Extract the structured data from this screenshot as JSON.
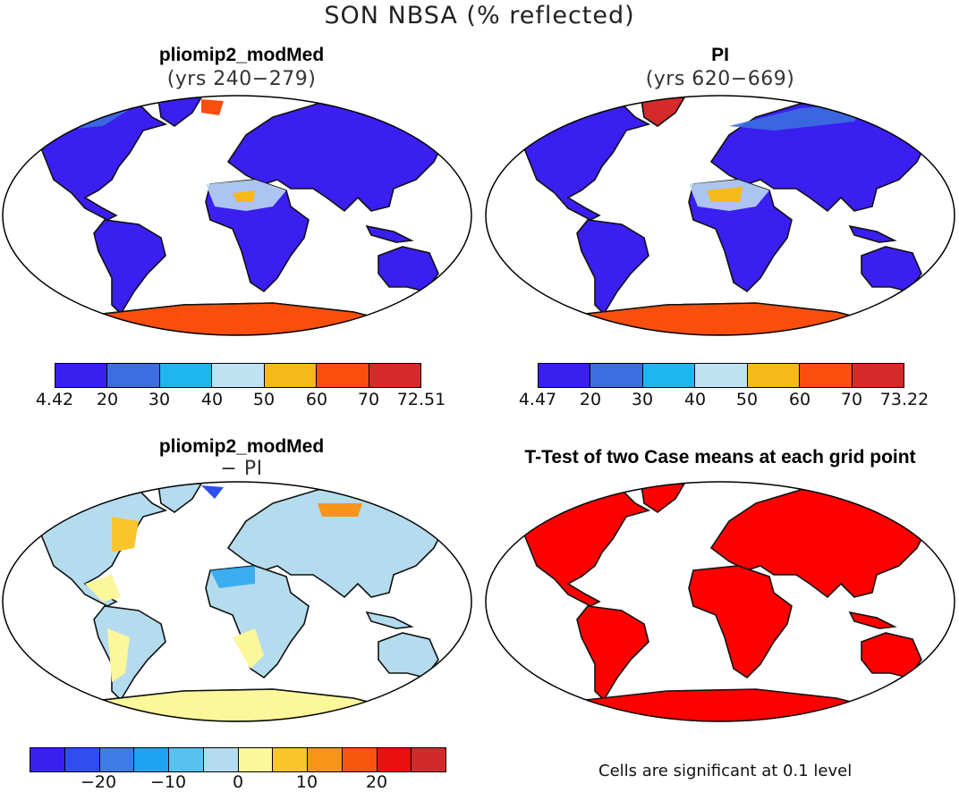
{
  "title": "SON NBSA (% reflected)",
  "panels": [
    {
      "id": "p1",
      "title": "pliomip2_modMed",
      "subtitle": "(yrs 240−279)",
      "style": "abs"
    },
    {
      "id": "p2",
      "title": "PI",
      "subtitle": "(yrs 620−669)",
      "style": "abs"
    },
    {
      "id": "p3",
      "title": "pliomip2_modMed",
      "subtitle": "− PI",
      "style": "diff"
    },
    {
      "id": "p4",
      "title": "T-Test of two Case means at each grid point",
      "subtitle": "",
      "style": "sig"
    }
  ],
  "colorbars": [
    {
      "id": "cb1",
      "colors": [
        "#3a1ff0",
        "#3c6ee0",
        "#1fb6f0",
        "#bfe2f2",
        "#f7b819",
        "#fa4f0c",
        "#d62a2a"
      ],
      "labels": [
        "4.42",
        "20",
        "30",
        "40",
        "50",
        "60",
        "70",
        "72.51"
      ]
    },
    {
      "id": "cb2",
      "colors": [
        "#3a1ff0",
        "#3c6ee0",
        "#1fb6f0",
        "#bfe2f2",
        "#f7b819",
        "#fa4f0c",
        "#d62a2a"
      ],
      "labels": [
        "4.47",
        "20",
        "30",
        "40",
        "50",
        "60",
        "70",
        "73.22"
      ]
    },
    {
      "id": "cb3",
      "colors": [
        "#3a1ff0",
        "#2f4ef2",
        "#3f7be6",
        "#1ea3f0",
        "#57c2f2",
        "#b4dcee",
        "#fbf79a",
        "#fac52a",
        "#f79419",
        "#f8560c",
        "#ea1010",
        "#d22a2a"
      ],
      "labels": [
        "−20",
        "−10",
        "0",
        "10",
        "20"
      ]
    }
  ],
  "significance_note": "Cells are significant at 0.1 level",
  "colors": {
    "significant": "#ff0000",
    "ocean": "#ffffff",
    "outline": "#000000"
  }
}
